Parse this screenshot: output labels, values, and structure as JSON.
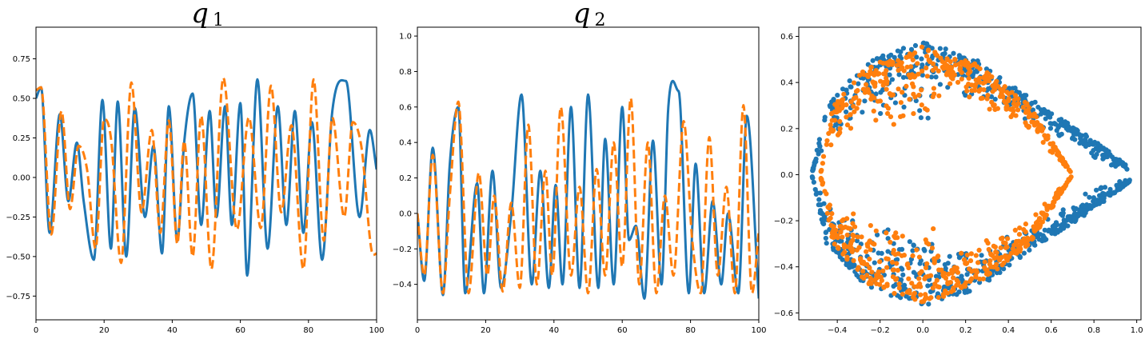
{
  "colors": {
    "blue": "#1f77b4",
    "orange": "#ff7f0e",
    "axis": "#000000",
    "background": "#ffffff"
  },
  "chart_data": [
    {
      "type": "line",
      "title_symbol": "q",
      "title_subscript": "1",
      "xlim": [
        0,
        100
      ],
      "ylim": [
        -0.9,
        0.95
      ],
      "grid": false,
      "xticks": [
        0,
        20,
        40,
        60,
        80,
        100
      ],
      "yticks": [
        -0.75,
        -0.5,
        -0.25,
        0.0,
        0.25,
        0.5,
        0.75
      ],
      "xtick_labels": [
        "0",
        "20",
        "40",
        "60",
        "80",
        "100"
      ],
      "ytick_labels": [
        "−0.75",
        "−0.50",
        "−0.25",
        "0.00",
        "0.25",
        "0.50",
        "0.75"
      ],
      "series": [
        {
          "style": "solid",
          "color": "#1f77b4",
          "x": [
            0,
            1.5,
            4,
            7,
            9.5,
            12,
            14,
            17,
            19.5,
            22,
            24,
            26.5,
            29,
            32,
            34.5,
            37,
            39,
            41.5,
            43.5,
            46,
            48.5,
            51,
            53,
            55.5,
            57.5,
            60,
            62,
            65,
            68,
            71,
            73.5,
            76,
            78.5,
            81,
            84,
            87,
            91,
            95,
            98,
            100
          ],
          "y": [
            0.5,
            0.57,
            -0.35,
            0.4,
            -0.15,
            0.22,
            -0.15,
            -0.52,
            0.49,
            -0.45,
            0.48,
            -0.5,
            0.44,
            -0.25,
            0.2,
            -0.48,
            0.45,
            -0.4,
            0.22,
            0.53,
            -0.3,
            0.42,
            -0.25,
            0.45,
            -0.3,
            0.47,
            -0.62,
            0.62,
            -0.45,
            0.45,
            -0.3,
            0.42,
            -0.35,
            0.35,
            -0.52,
            0.42,
            0.61,
            -0.25,
            0.3,
            0.05
          ]
        },
        {
          "style": "dashed",
          "color": "#ff7f0e",
          "x": [
            0,
            1.5,
            4.5,
            7.5,
            10,
            12.5,
            15,
            17.5,
            20,
            22,
            25,
            28,
            31,
            34,
            36.5,
            39,
            41.5,
            43.5,
            46,
            48.5,
            51.5,
            55,
            59,
            62.5,
            66,
            69,
            72,
            75,
            78.5,
            81.5,
            84.5,
            87,
            90.5,
            93,
            95.5,
            99,
            100
          ],
          "y": [
            0.55,
            0.57,
            -0.36,
            0.42,
            -0.2,
            0.2,
            0.05,
            -0.45,
            0.37,
            0.25,
            -0.54,
            0.6,
            -0.22,
            0.3,
            -0.35,
            0.36,
            -0.42,
            0.23,
            -0.5,
            0.39,
            -0.58,
            0.63,
            -0.33,
            0.38,
            -0.32,
            0.58,
            -0.22,
            0.33,
            -0.58,
            0.62,
            -0.4,
            0.38,
            -0.25,
            0.35,
            0.2,
            -0.49,
            -0.48
          ]
        }
      ]
    },
    {
      "type": "line",
      "title_symbol": "q",
      "title_subscript": "2",
      "xlim": [
        0,
        100
      ],
      "ylim": [
        -0.6,
        1.05
      ],
      "grid": false,
      "xticks": [
        0,
        20,
        40,
        60,
        80,
        100
      ],
      "yticks": [
        -0.4,
        -0.2,
        0.0,
        0.2,
        0.4,
        0.6,
        0.8,
        1.0
      ],
      "xtick_labels": [
        "0",
        "20",
        "40",
        "60",
        "80",
        "100"
      ],
      "ytick_labels": [
        "−0.4",
        "−0.2",
        "0.0",
        "0.2",
        "0.4",
        "0.6",
        "0.8",
        "1.0"
      ],
      "series": [
        {
          "style": "solid",
          "color": "#1f77b4",
          "x": [
            0,
            2,
            4.5,
            7.5,
            9.5,
            12,
            14,
            17.5,
            19.5,
            22,
            24.5,
            27.5,
            30.5,
            33.5,
            36,
            38.5,
            40.5,
            42.5,
            45,
            47.5,
            50,
            53,
            55,
            57.5,
            60,
            62,
            64,
            66.5,
            69,
            71.5,
            73.5,
            76.5,
            79.5,
            81.5,
            84,
            86.5,
            89,
            91,
            94,
            96.5,
            100
          ],
          "y": [
            0.0,
            -0.38,
            0.37,
            -0.46,
            0.28,
            0.6,
            -0.45,
            0.17,
            -0.45,
            0.24,
            -0.42,
            0.0,
            0.67,
            -0.4,
            0.24,
            -0.42,
            0.16,
            -0.4,
            0.6,
            -0.42,
            0.67,
            -0.42,
            0.42,
            -0.4,
            0.6,
            -0.15,
            -0.07,
            -0.48,
            0.41,
            -0.4,
            0.6,
            0.69,
            -0.45,
            0.28,
            -0.45,
            0.07,
            -0.4,
            0.0,
            -0.45,
            0.55,
            -0.48
          ]
        },
        {
          "style": "dashed",
          "color": "#ff7f0e",
          "x": [
            0,
            2,
            4.5,
            7.5,
            9.5,
            12,
            15,
            18,
            20.5,
            22.5,
            25,
            27.5,
            30,
            32.5,
            35,
            37.5,
            39.5,
            42,
            45,
            47.5,
            50,
            52.5,
            55,
            57.5,
            60,
            62.5,
            65,
            67.5,
            70,
            72.5,
            75,
            78,
            80.5,
            83,
            85.5,
            88,
            90.5,
            93,
            95.5,
            98,
            100
          ],
          "y": [
            0.0,
            -0.35,
            0.33,
            -0.45,
            0.1,
            0.63,
            -0.45,
            0.23,
            -0.35,
            0.1,
            -0.44,
            0.06,
            -0.42,
            0.5,
            -0.4,
            0.24,
            -0.35,
            0.6,
            -0.35,
            0.15,
            -0.45,
            0.25,
            -0.35,
            0.4,
            -0.3,
            0.65,
            -0.4,
            0.4,
            -0.45,
            0.1,
            -0.35,
            0.52,
            -0.15,
            -0.45,
            0.43,
            -0.35,
            0.15,
            -0.45,
            0.61,
            -0.45,
            -0.1
          ]
        }
      ]
    },
    {
      "type": "scatter",
      "title": "",
      "xlim": [
        -0.58,
        1.02
      ],
      "ylim": [
        -0.63,
        0.64
      ],
      "grid": false,
      "xticks": [
        -0.4,
        -0.2,
        0.0,
        0.2,
        0.4,
        0.6,
        0.8,
        1.0
      ],
      "yticks": [
        -0.6,
        -0.4,
        -0.2,
        0.0,
        0.2,
        0.4,
        0.6
      ],
      "xtick_labels": [
        "−0.4",
        "−0.2",
        "0.0",
        "0.2",
        "0.4",
        "0.6",
        "0.8",
        "1.0"
      ],
      "ytick_labels": [
        "−0.6",
        "−0.4",
        "−0.2",
        "0.0",
        "0.2",
        "0.4",
        "0.6"
      ],
      "series": [
        {
          "color": "#1f77b4",
          "shape": "teardrop ring point cloud",
          "outline_upper": [
            [
              -0.52,
              0.0
            ],
            [
              -0.45,
              0.3
            ],
            [
              -0.25,
              0.5
            ],
            [
              0.0,
              0.58
            ],
            [
              0.25,
              0.5
            ],
            [
              0.55,
              0.3
            ],
            [
              0.8,
              0.15
            ],
            [
              0.97,
              0.03
            ]
          ],
          "outline_lower": [
            [
              0.97,
              -0.03
            ],
            [
              0.8,
              -0.15
            ],
            [
              0.55,
              -0.3
            ],
            [
              0.25,
              -0.5
            ],
            [
              0.0,
              -0.57
            ],
            [
              -0.25,
              -0.5
            ],
            [
              -0.45,
              -0.3
            ],
            [
              -0.52,
              0.0
            ]
          ]
        },
        {
          "color": "#ff7f0e",
          "shape": "oval ring point cloud",
          "outline_upper": [
            [
              -0.48,
              0.0
            ],
            [
              -0.42,
              0.3
            ],
            [
              -0.25,
              0.48
            ],
            [
              0.0,
              0.56
            ],
            [
              0.25,
              0.48
            ],
            [
              0.5,
              0.3
            ],
            [
              0.7,
              0.0
            ]
          ],
          "outline_lower": [
            [
              0.7,
              0.0
            ],
            [
              0.5,
              -0.3
            ],
            [
              0.25,
              -0.48
            ],
            [
              0.0,
              -0.56
            ],
            [
              -0.25,
              -0.48
            ],
            [
              -0.42,
              -0.3
            ],
            [
              -0.48,
              0.0
            ]
          ]
        }
      ]
    }
  ]
}
